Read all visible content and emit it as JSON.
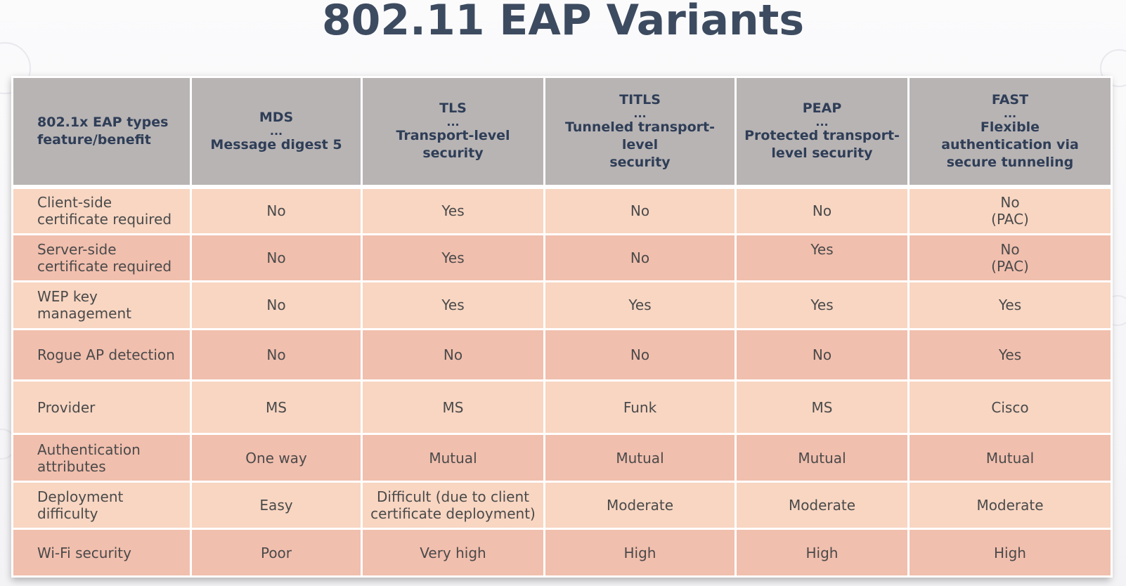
{
  "title": "802.11 EAP Variants",
  "table": {
    "header": {
      "feature": [
        "802.1x EAP types",
        "feature/benefit"
      ],
      "columns": [
        {
          "name": "MDS",
          "sep": "...",
          "desc": [
            "Message digest 5"
          ]
        },
        {
          "name": "TLS",
          "sep": "...",
          "desc": [
            "Transport-level security"
          ]
        },
        {
          "name": "TITLS",
          "sep": "...",
          "desc": [
            "Tunneled transport-level",
            "security"
          ]
        },
        {
          "name": "PEAP",
          "sep": "...",
          "desc": [
            "Protected transport-",
            "level security"
          ]
        },
        {
          "name": "FAST",
          "sep": "...",
          "desc": [
            "Flexible",
            "authentication via",
            "secure tunneling"
          ]
        }
      ]
    },
    "rows": [
      {
        "label": [
          "Client-side",
          "certificate required"
        ],
        "cells": [
          [
            "No"
          ],
          [
            "Yes"
          ],
          [
            "No"
          ],
          [
            "No"
          ],
          [
            "No",
            "(PAC)"
          ]
        ]
      },
      {
        "label": [
          "Server-side",
          "certificate required"
        ],
        "cells": [
          [
            "No"
          ],
          [
            "Yes"
          ],
          [
            "No"
          ],
          [
            "Yes"
          ],
          [
            "No",
            "(PAC)"
          ]
        ]
      },
      {
        "label": [
          "WEP key",
          "management"
        ],
        "cells": [
          [
            "No"
          ],
          [
            "Yes"
          ],
          [
            "Yes"
          ],
          [
            "Yes"
          ],
          [
            "Yes"
          ]
        ]
      },
      {
        "label": [
          "Rogue AP detection"
        ],
        "cells": [
          [
            "No"
          ],
          [
            "No"
          ],
          [
            "No"
          ],
          [
            "No"
          ],
          [
            "Yes"
          ]
        ]
      },
      {
        "label": [
          "Provider"
        ],
        "cells": [
          [
            "MS"
          ],
          [
            "MS"
          ],
          [
            "Funk"
          ],
          [
            "MS"
          ],
          [
            "Cisco"
          ]
        ]
      },
      {
        "label": [
          "Authentication",
          "attributes"
        ],
        "cells": [
          [
            "One way"
          ],
          [
            "Mutual"
          ],
          [
            "Mutual"
          ],
          [
            "Mutual"
          ],
          [
            "Mutual"
          ]
        ]
      },
      {
        "label": [
          "Deployment",
          "difficulty"
        ],
        "cells": [
          [
            "Easy"
          ],
          [
            "Difficult (due to client",
            "certificate deployment)"
          ],
          [
            "Moderate"
          ],
          [
            "Moderate"
          ],
          [
            "Moderate"
          ]
        ]
      },
      {
        "label": [
          "Wi-Fi security"
        ],
        "cells": [
          [
            "Poor"
          ],
          [
            "Very high"
          ],
          [
            "High"
          ],
          [
            "High"
          ],
          [
            "High"
          ]
        ]
      }
    ]
  }
}
